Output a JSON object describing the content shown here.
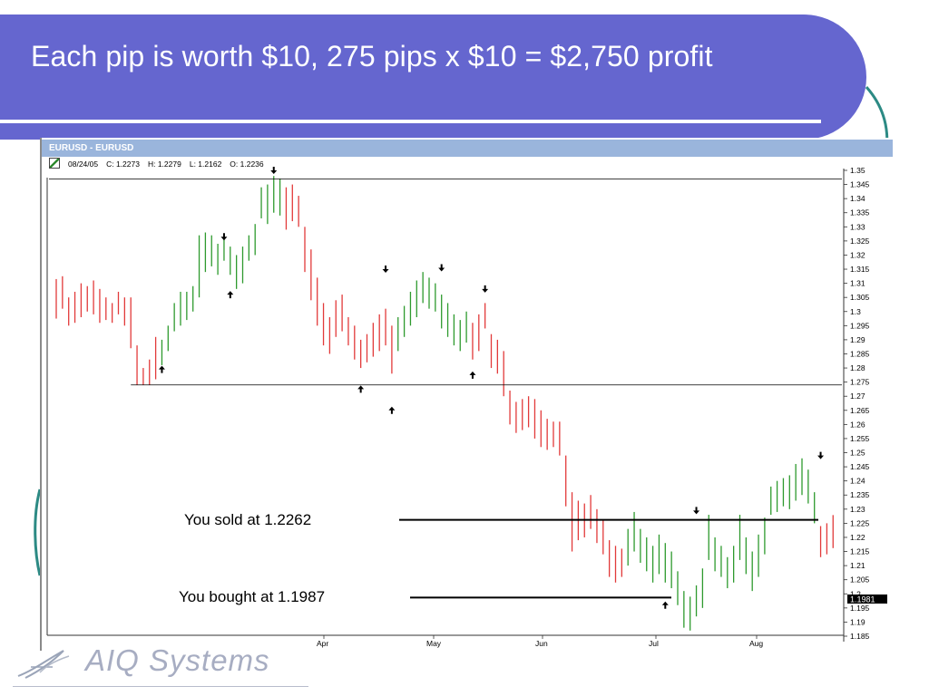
{
  "slide": {
    "title": "Each pip is worth $10, 275 pips x $10 = $2,750 profit",
    "accent": "#6566cf",
    "logo_text": "AIQ Systems"
  },
  "window": {
    "title": "EURUSD - EURUSD",
    "ohlc": {
      "date": "08/24/05",
      "close": "C: 1.2273",
      "high": "H: 1.2279",
      "low": "L: 1.2162",
      "open": "O: 1.2236"
    }
  },
  "annotations": {
    "sold": "You sold at 1.2262",
    "bought": "You bought at 1.1987"
  },
  "chart_data": {
    "type": "bar",
    "subtype": "ohlc",
    "x_tick_labels": [
      "Apr",
      "May",
      "Jun",
      "Jul",
      "Aug"
    ],
    "y_ticks": [
      "1.35",
      "1.345",
      "1.34",
      "1.335",
      "1.33",
      "1.325",
      "1.32",
      "1.315",
      "1.31",
      "1.305",
      "1.3",
      "1.295",
      "1.29",
      "1.285",
      "1.28",
      "1.275",
      "1.27",
      "1.265",
      "1.26",
      "1.255",
      "1.25",
      "1.245",
      "1.24",
      "1.235",
      "1.23",
      "1.225",
      "1.22",
      "1.215",
      "1.21",
      "1.205",
      "1.2",
      "1.195",
      "1.19",
      "1.185"
    ],
    "ylim": [
      1.185,
      1.35
    ],
    "current_price_label": "1.1981",
    "up_color": "#2e9a2e",
    "down_color": "#e23a3a",
    "bars": [
      [
        1.3115,
        1.2975,
        "d"
      ],
      [
        1.3125,
        1.301,
        "d"
      ],
      [
        1.305,
        1.295,
        "d"
      ],
      [
        1.307,
        1.296,
        "d"
      ],
      [
        1.31,
        1.298,
        "d"
      ],
      [
        1.309,
        1.3,
        "d"
      ],
      [
        1.311,
        1.299,
        "d"
      ],
      [
        1.308,
        1.296,
        "d"
      ],
      [
        1.305,
        1.297,
        "d"
      ],
      [
        1.303,
        1.296,
        "d"
      ],
      [
        1.307,
        1.299,
        "d"
      ],
      [
        1.305,
        1.295,
        "d"
      ],
      [
        1.305,
        1.287,
        "d"
      ],
      [
        1.288,
        1.274,
        "d"
      ],
      [
        1.28,
        1.274,
        "d"
      ],
      [
        1.283,
        1.274,
        "d"
      ],
      [
        1.291,
        1.276,
        "d"
      ],
      [
        1.29,
        1.281,
        "u"
      ],
      [
        1.295,
        1.286,
        "u"
      ],
      [
        1.303,
        1.293,
        "u"
      ],
      [
        1.307,
        1.295,
        "u"
      ],
      [
        1.307,
        1.297,
        "u"
      ],
      [
        1.309,
        1.3,
        "u"
      ],
      [
        1.327,
        1.305,
        "u"
      ],
      [
        1.328,
        1.314,
        "u"
      ],
      [
        1.327,
        1.316,
        "u"
      ],
      [
        1.324,
        1.313,
        "u"
      ],
      [
        1.327,
        1.318,
        "u"
      ],
      [
        1.323,
        1.313,
        "u"
      ],
      [
        1.32,
        1.308,
        "u"
      ],
      [
        1.323,
        1.31,
        "u"
      ],
      [
        1.327,
        1.318,
        "u"
      ],
      [
        1.331,
        1.32,
        "u"
      ],
      [
        1.344,
        1.333,
        "u"
      ],
      [
        1.345,
        1.331,
        "u"
      ],
      [
        1.348,
        1.335,
        "u"
      ],
      [
        1.347,
        1.334,
        "u"
      ],
      [
        1.344,
        1.329,
        "d"
      ],
      [
        1.345,
        1.332,
        "d"
      ],
      [
        1.341,
        1.33,
        "d"
      ],
      [
        1.33,
        1.314,
        "d"
      ],
      [
        1.322,
        1.304,
        "d"
      ],
      [
        1.312,
        1.295,
        "d"
      ],
      [
        1.303,
        1.288,
        "d"
      ],
      [
        1.298,
        1.285,
        "d"
      ],
      [
        1.304,
        1.291,
        "d"
      ],
      [
        1.306,
        1.293,
        "d"
      ],
      [
        1.298,
        1.288,
        "d"
      ],
      [
        1.295,
        1.283,
        "d"
      ],
      [
        1.29,
        1.28,
        "d"
      ],
      [
        1.292,
        1.282,
        "d"
      ],
      [
        1.296,
        1.284,
        "d"
      ],
      [
        1.299,
        1.286,
        "d"
      ],
      [
        1.301,
        1.288,
        "d"
      ],
      [
        1.295,
        1.278,
        "d"
      ],
      [
        1.298,
        1.286,
        "u"
      ],
      [
        1.302,
        1.291,
        "u"
      ],
      [
        1.307,
        1.295,
        "u"
      ],
      [
        1.311,
        1.298,
        "u"
      ],
      [
        1.314,
        1.303,
        "u"
      ],
      [
        1.312,
        1.301,
        "u"
      ],
      [
        1.31,
        1.3,
        "u"
      ],
      [
        1.306,
        1.294,
        "u"
      ],
      [
        1.303,
        1.291,
        "u"
      ],
      [
        1.299,
        1.288,
        "u"
      ],
      [
        1.297,
        1.286,
        "u"
      ],
      [
        1.3,
        1.289,
        "u"
      ],
      [
        1.296,
        1.283,
        "d"
      ],
      [
        1.299,
        1.286,
        "d"
      ],
      [
        1.303,
        1.294,
        "d"
      ],
      [
        1.292,
        1.28,
        "d"
      ],
      [
        1.29,
        1.278,
        "d"
      ],
      [
        1.286,
        1.27,
        "d"
      ],
      [
        1.272,
        1.26,
        "d"
      ],
      [
        1.268,
        1.257,
        "d"
      ],
      [
        1.269,
        1.258,
        "d"
      ],
      [
        1.27,
        1.259,
        "d"
      ],
      [
        1.269,
        1.255,
        "d"
      ],
      [
        1.265,
        1.252,
        "d"
      ],
      [
        1.262,
        1.251,
        "d"
      ],
      [
        1.261,
        1.252,
        "d"
      ],
      [
        1.261,
        1.249,
        "d"
      ],
      [
        1.249,
        1.231,
        "d"
      ],
      [
        1.236,
        1.215,
        "d"
      ],
      [
        1.233,
        1.219,
        "d"
      ],
      [
        1.232,
        1.22,
        "d"
      ],
      [
        1.235,
        1.223,
        "d"
      ],
      [
        1.23,
        1.218,
        "d"
      ],
      [
        1.226,
        1.214,
        "d"
      ],
      [
        1.219,
        1.206,
        "d"
      ],
      [
        1.217,
        1.204,
        "d"
      ],
      [
        1.216,
        1.206,
        "d"
      ],
      [
        1.223,
        1.21,
        "u"
      ],
      [
        1.229,
        1.215,
        "u"
      ],
      [
        1.223,
        1.211,
        "u"
      ],
      [
        1.22,
        1.208,
        "u"
      ],
      [
        1.217,
        1.204,
        "u"
      ],
      [
        1.221,
        1.207,
        "u"
      ],
      [
        1.218,
        1.204,
        "u"
      ],
      [
        1.215,
        1.202,
        "u"
      ],
      [
        1.208,
        1.196,
        "u"
      ],
      [
        1.201,
        1.188,
        "u"
      ],
      [
        1.199,
        1.187,
        "u"
      ],
      [
        1.203,
        1.192,
        "u"
      ],
      [
        1.209,
        1.195,
        "u"
      ],
      [
        1.228,
        1.212,
        "u"
      ],
      [
        1.22,
        1.208,
        "u"
      ],
      [
        1.217,
        1.206,
        "u"
      ],
      [
        1.213,
        1.202,
        "u"
      ],
      [
        1.217,
        1.204,
        "u"
      ],
      [
        1.228,
        1.212,
        "u"
      ],
      [
        1.22,
        1.207,
        "u"
      ],
      [
        1.215,
        1.201,
        "u"
      ],
      [
        1.221,
        1.206,
        "u"
      ],
      [
        1.227,
        1.214,
        "u"
      ],
      [
        1.238,
        1.228,
        "u"
      ],
      [
        1.24,
        1.229,
        "u"
      ],
      [
        1.241,
        1.231,
        "u"
      ],
      [
        1.242,
        1.23,
        "u"
      ],
      [
        1.246,
        1.233,
        "u"
      ],
      [
        1.248,
        1.235,
        "u"
      ],
      [
        1.244,
        1.232,
        "u"
      ],
      [
        1.236,
        1.225,
        "u"
      ],
      [
        1.224,
        1.213,
        "d"
      ],
      [
        1.225,
        1.214,
        "d"
      ],
      [
        1.2279,
        1.2162,
        "d"
      ]
    ],
    "signals": [
      {
        "bar": 17,
        "dir": "up",
        "price": 1.2795
      },
      {
        "bar": 27,
        "dir": "down",
        "price": 1.3265
      },
      {
        "bar": 28,
        "dir": "up",
        "price": 1.306
      },
      {
        "bar": 35,
        "dir": "down",
        "price": 1.35
      },
      {
        "bar": 49,
        "dir": "up",
        "price": 1.2725
      },
      {
        "bar": 53,
        "dir": "down",
        "price": 1.315
      },
      {
        "bar": 54,
        "dir": "up",
        "price": 1.265
      },
      {
        "bar": 62,
        "dir": "down",
        "price": 1.3155
      },
      {
        "bar": 67,
        "dir": "up",
        "price": 1.2775
      },
      {
        "bar": 69,
        "dir": "down",
        "price": 1.308
      },
      {
        "bar": 98,
        "dir": "up",
        "price": 1.196
      },
      {
        "bar": 103,
        "dir": "down",
        "price": 1.2295
      },
      {
        "bar": 123,
        "dir": "down",
        "price": 1.249
      }
    ],
    "hlines": [
      1.347,
      1.274
    ],
    "sold_price": 1.2262,
    "bought_price": 1.1987
  }
}
